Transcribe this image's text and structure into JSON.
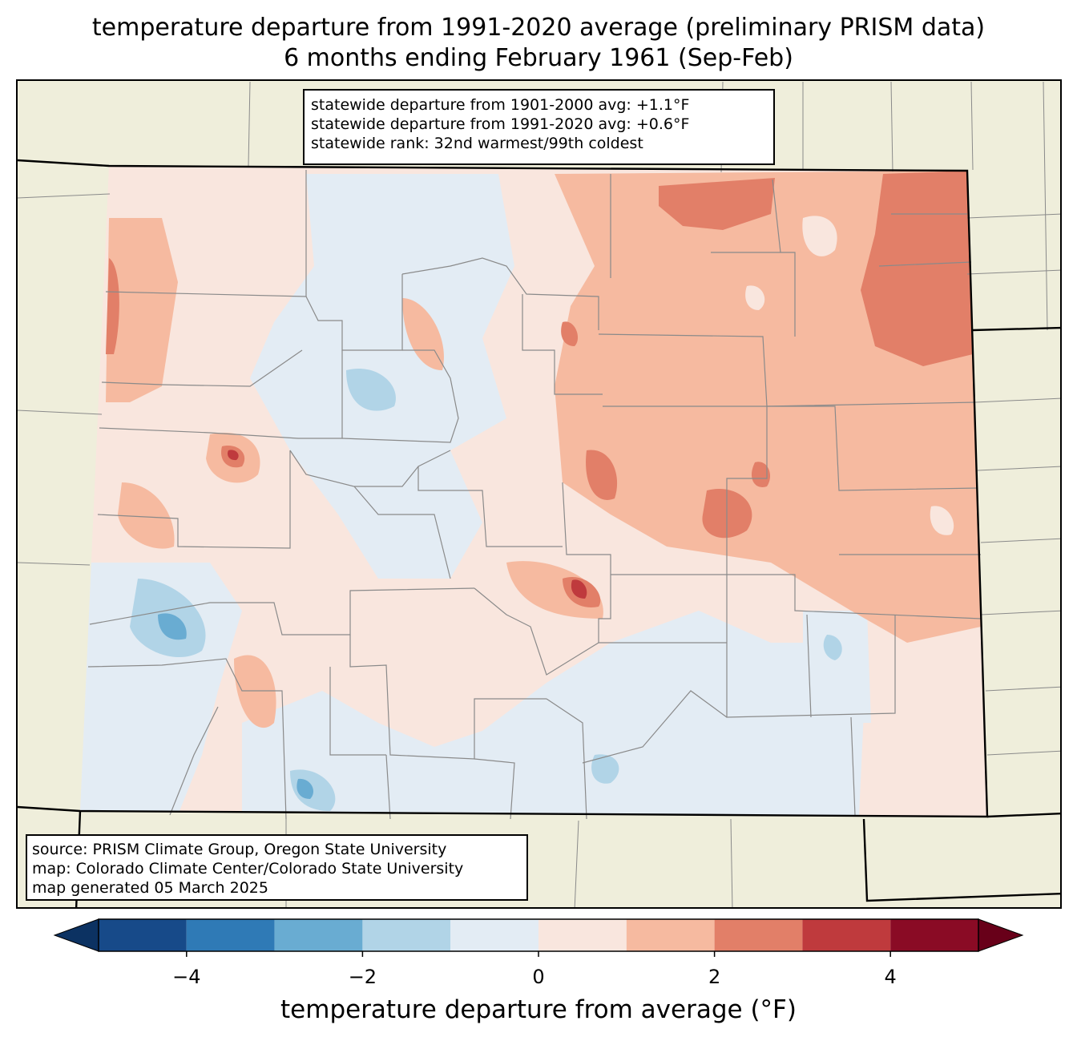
{
  "title": {
    "line1": "temperature departure from 1991-2020 average (preliminary PRISM data)",
    "line2": "6 months ending February 1961 (Sep-Feb)"
  },
  "stats": {
    "line1": "statewide departure from 1901-2000 avg: +1.1°F",
    "line2": "statewide departure from 1991-2020 avg: +0.6°F",
    "line3": "statewide rank: 32nd warmest/99th coldest"
  },
  "source": {
    "line1": "source: PRISM Climate Group, Oregon State University",
    "line2": "map: Colorado Climate Center/Colorado State University",
    "line3": "map generated 05 March 2025"
  },
  "colorbar": {
    "label": "temperature departure from average (°F)",
    "ticks": [
      "−4",
      "−2",
      "0",
      "2",
      "4"
    ],
    "range": [
      -5,
      5
    ],
    "bins": [
      {
        "from": -5,
        "to": -4,
        "color": "#174a89"
      },
      {
        "from": -4,
        "to": -3,
        "color": "#2f7ab6"
      },
      {
        "from": -3,
        "to": -2,
        "color": "#69acd2"
      },
      {
        "from": -2,
        "to": -1,
        "color": "#b1d4e7"
      },
      {
        "from": -1,
        "to": 0,
        "color": "#e3ecf4"
      },
      {
        "from": 0,
        "to": 1,
        "color": "#f9e6de"
      },
      {
        "from": 1,
        "to": 2,
        "color": "#f6baa0"
      },
      {
        "from": 2,
        "to": 3,
        "color": "#e27f68"
      },
      {
        "from": 3,
        "to": 4,
        "color": "#bf3a3d"
      },
      {
        "from": 4,
        "to": 5,
        "color": "#8a0b25"
      }
    ],
    "under_color": "#0c3262",
    "over_color": "#680019"
  },
  "map_colors": {
    "background_land": "#efeedb",
    "county_lines": "#8a8a8a",
    "state_lines": "#000000"
  }
}
